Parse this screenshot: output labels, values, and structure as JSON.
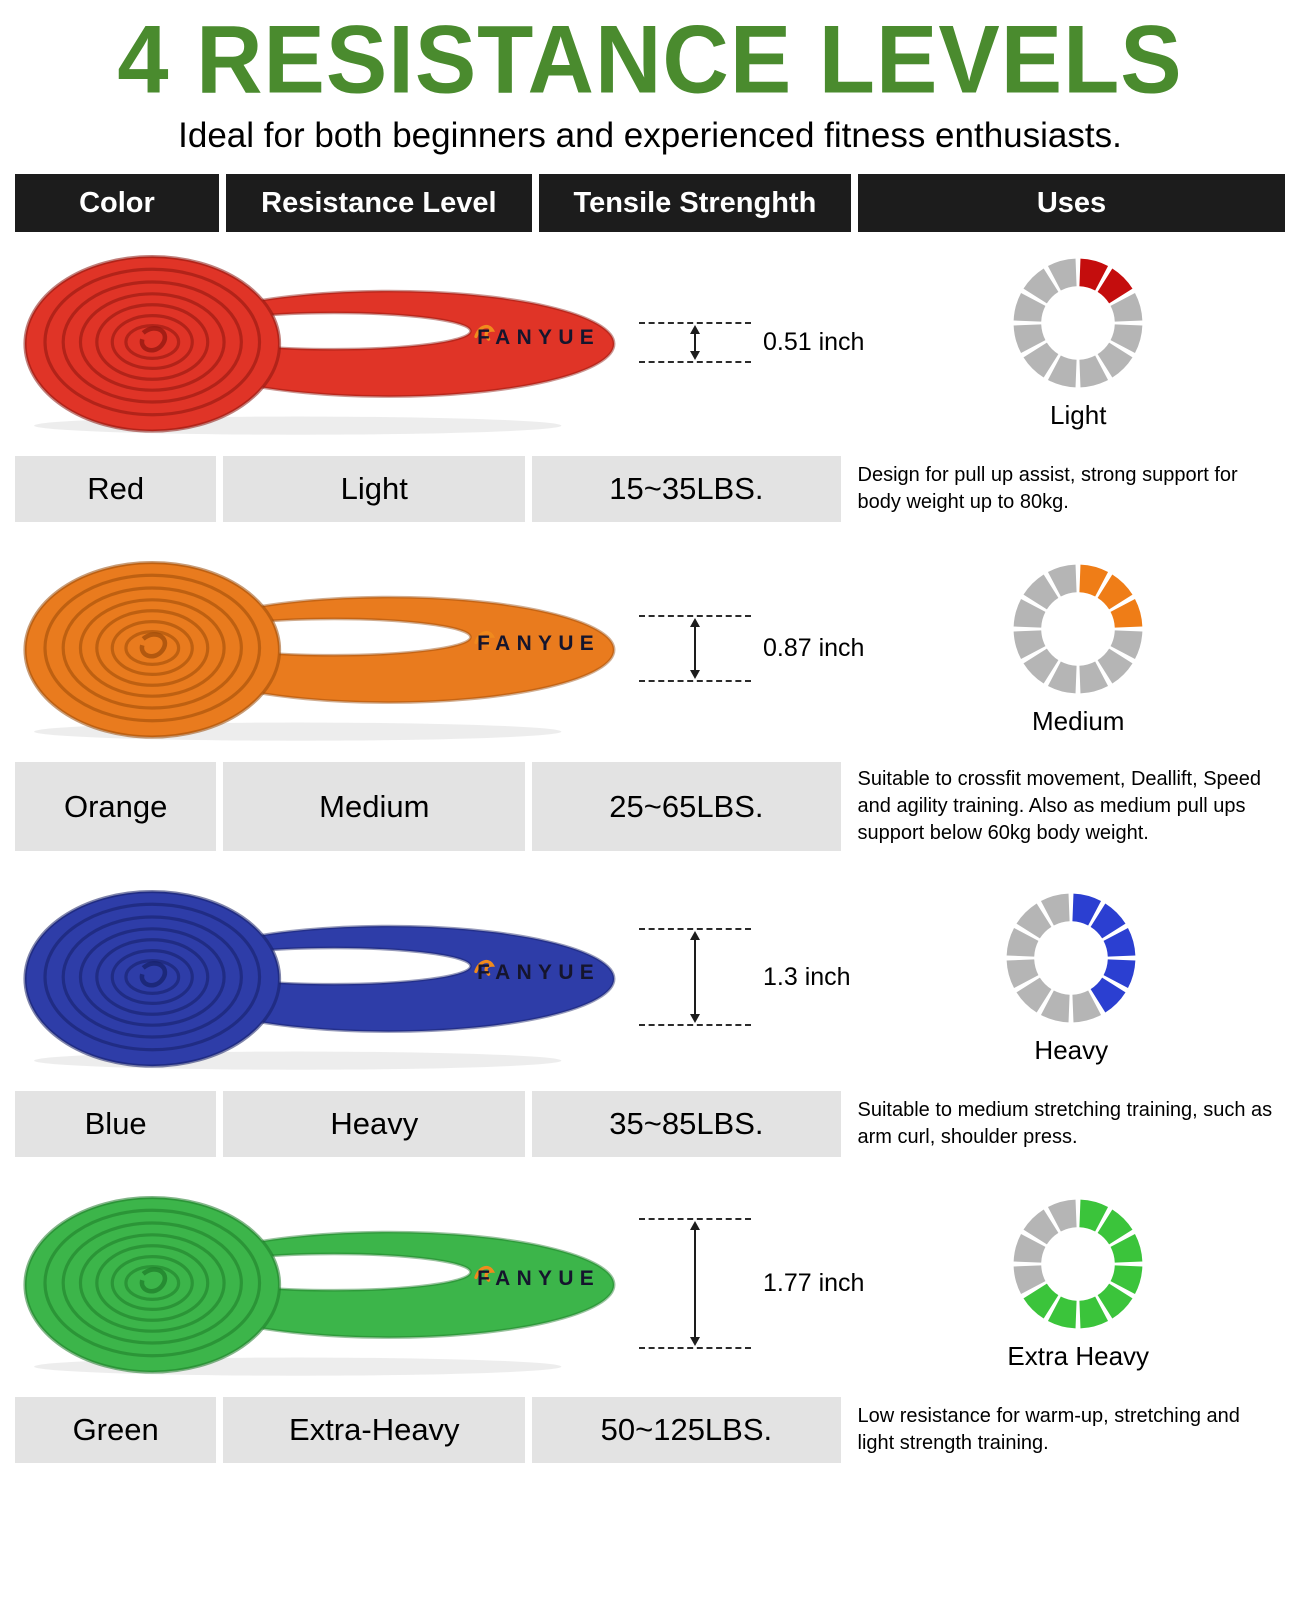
{
  "title": "4 RESISTANCE LEVELS",
  "subtitle": "Ideal for both beginners and experienced fitness enthusiasts.",
  "brand": "FANYUE",
  "colors": {
    "title_green": "#4a8b2e",
    "header_bg": "#1c1c1c",
    "row_bg": "#e3e3e3",
    "gauge_gray": "#b5b5b5"
  },
  "table": {
    "headers": [
      "Color",
      "Resistance Level",
      "Tensile Strenghth",
      "Uses"
    ]
  },
  "rows": [
    {
      "color_name": "Red",
      "level": "Light",
      "strength": "15~35LBS.",
      "uses": "Design for pull up assist, strong support for body weight up to 80kg.",
      "thickness": "0.51 inch",
      "thickness_inches": 0.51,
      "band_color": "#e03427",
      "band_dark": "#8c160e",
      "gauge": {
        "label": "Light",
        "filled": 2,
        "total": 12,
        "color": "#c40d0d"
      }
    },
    {
      "color_name": "Orange",
      "level": "Medium",
      "strength": "25~65LBS.",
      "uses": "Suitable to crossfit movement, Deallift, Speed and agility training. Also as medium pull ups support below 60kg body weight.",
      "thickness": "0.87 inch",
      "thickness_inches": 0.87,
      "band_color": "#e97b1e",
      "band_dark": "#9a4a08",
      "gauge": {
        "label": "Medium",
        "filled": 3,
        "total": 12,
        "color": "#ef7d17"
      }
    },
    {
      "color_name": "Blue",
      "level": "Heavy",
      "strength": "35~85LBS.",
      "uses": "Suitable to medium stretching training, such as arm curl, shoulder press.",
      "thickness": "1.3 inch",
      "thickness_inches": 1.3,
      "band_color": "#2e3da8",
      "band_dark": "#161f66",
      "gauge": {
        "label": "Heavy",
        "filled": 5,
        "total": 12,
        "color": "#2b3fd1"
      }
    },
    {
      "color_name": "Green",
      "level": "Extra-Heavy",
      "strength": "50~125LBS.",
      "uses": "Low resistance for warm-up, stretching and light strength training.",
      "thickness": "1.77 inch",
      "thickness_inches": 1.77,
      "band_color": "#3cb54a",
      "band_dark": "#1d7a28",
      "gauge": {
        "label": "Extra Heavy",
        "filled": 8,
        "total": 12,
        "color": "#3bc43b"
      }
    }
  ]
}
